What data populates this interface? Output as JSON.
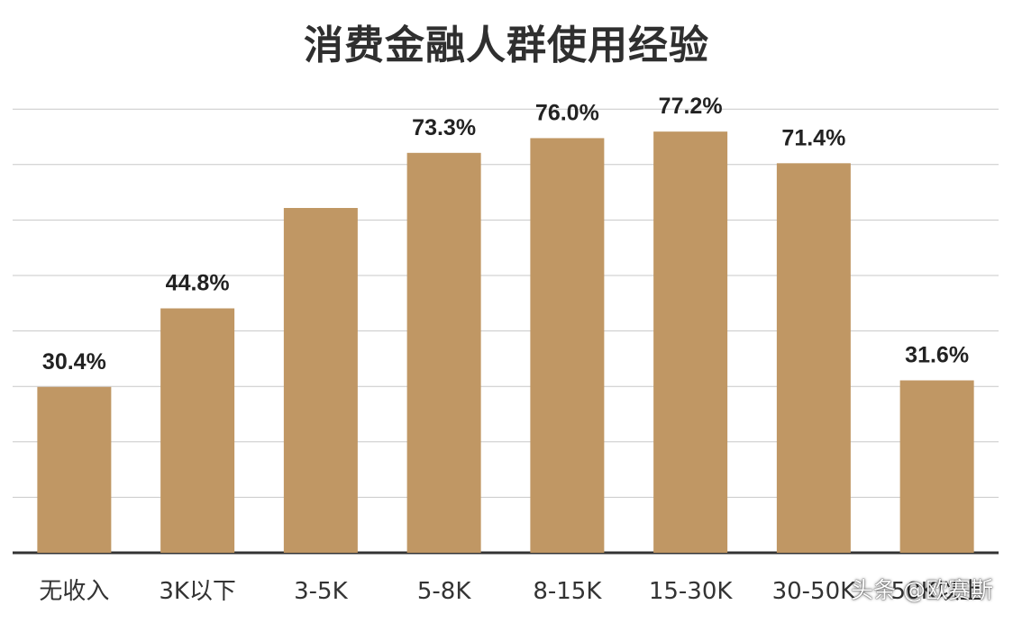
{
  "chart_data": {
    "type": "bar",
    "title": "消费金融人群使用经验",
    "categories": [
      "无收入",
      "3K以下",
      "3-5K",
      "5-8K",
      "8-15K",
      "15-30K",
      "30-50K",
      "50K以上"
    ],
    "values": [
      30.4,
      44.8,
      63.2,
      73.3,
      76.0,
      77.2,
      71.4,
      31.6
    ],
    "data_labels": [
      "30.4%",
      "44.8%",
      "",
      "73.3%",
      "76.0%",
      "77.2%",
      "71.4%",
      "31.6%"
    ],
    "ylim": [
      0,
      80
    ],
    "grid": true,
    "bar_color": "#c09764"
  },
  "watermark": "头条 @欧赛斯"
}
